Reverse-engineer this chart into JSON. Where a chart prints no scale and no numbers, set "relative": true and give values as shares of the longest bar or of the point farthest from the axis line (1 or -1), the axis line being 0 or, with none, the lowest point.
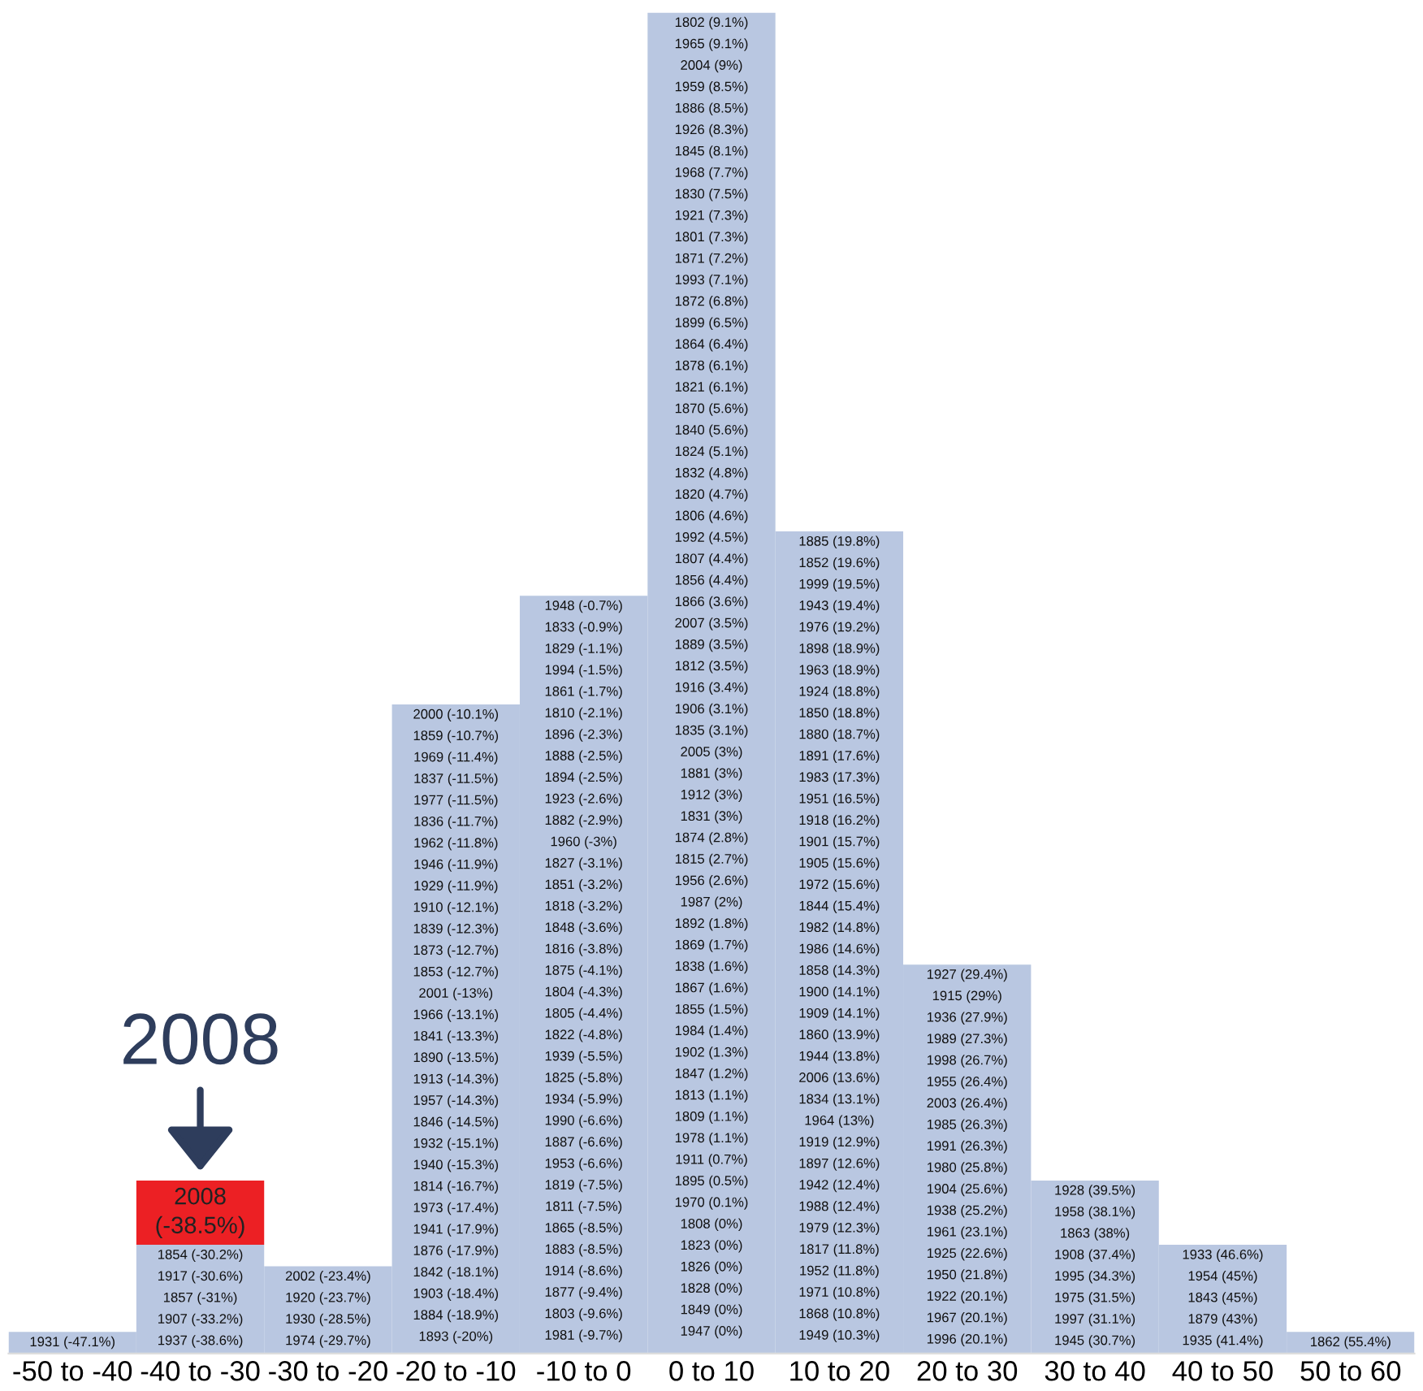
{
  "chart_data": {
    "type": "bar",
    "relative": true,
    "stacked": true,
    "categories": [
      "-50 to -40",
      "-40 to -30",
      "-30 to -20",
      "-20 to -10",
      "-10 to 0",
      "0 to 10",
      "10 to 20",
      "20 to 30",
      "30 to 40",
      "40 to 50",
      "50 to 60"
    ],
    "series": [
      {
        "color": "#b9c7e1",
        "values": [
          0.016,
          0.081,
          0.065,
          0.484,
          0.565,
          1,
          0.613,
          0.29,
          0.129,
          0.081,
          0.016
        ]
      },
      {
        "color": "#ec2024",
        "values": [
          null,
          0.048,
          null,
          null,
          null,
          null,
          null,
          null,
          null,
          null,
          null
        ]
      }
    ],
    "annotations": [
      "2008",
      "2008\n(-38.5%)",
      "1931 (-47.1%)",
      "1854 (-30.2%)",
      "1917 (-30.6%)",
      "1857 (-31%)",
      "1907 (-33.2%)",
      "1937 (-38.6%)",
      "2002 (-23.4%)",
      "1920 (-23.7%)",
      "1930 (-28.5%)",
      "1974 (-29.7%)",
      "2000 (-10.1%)",
      "1859 (-10.7%)",
      "1969 (-11.4%)",
      "1837 (-11.5%)",
      "1977 (-11.5%)",
      "1836 (-11.7%)",
      "1962 (-11.8%)",
      "1946 (-11.9%)",
      "1929 (-11.9%)",
      "1910 (-12.1%)",
      "1839 (-12.3%)",
      "1873 (-12.7%)",
      "1853 (-12.7%)",
      "2001 (-13%)",
      "1966 (-13.1%)",
      "1841 (-13.3%)",
      "1890 (-13.5%)",
      "1913 (-14.3%)",
      "1957 (-14.3%)",
      "1846 (-14.5%)",
      "1932 (-15.1%)",
      "1940 (-15.3%)",
      "1814 (-16.7%)",
      "1973 (-17.4%)",
      "1941 (-17.9%)",
      "1876 (-17.9%)",
      "1842 (-18.1%)",
      "1903 (-18.4%)",
      "1884 (-18.9%)",
      "1893 (-20%)",
      "1948 (-0.7%)",
      "1833 (-0.9%)",
      "1829 (-1.1%)",
      "1994 (-1.5%)",
      "1861 (-1.7%)",
      "1810 (-2.1%)",
      "1896 (-2.3%)",
      "1888 (-2.5%)",
      "1894 (-2.5%)",
      "1923 (-2.6%)",
      "1882 (-2.9%)",
      "1960 (-3%)",
      "1827 (-3.1%)",
      "1851 (-3.2%)",
      "1818 (-3.2%)",
      "1848 (-3.6%)",
      "1816 (-3.8%)",
      "1875 (-4.1%)",
      "1804 (-4.3%)",
      "1805 (-4.4%)",
      "1822 (-4.8%)",
      "1939 (-5.5%)",
      "1825 (-5.8%)",
      "1934 (-5.9%)",
      "1990 (-6.6%)",
      "1887 (-6.6%)",
      "1953 (-6.6%)",
      "1819 (-7.5%)",
      "1811 (-7.5%)",
      "1865 (-8.5%)",
      "1883 (-8.5%)",
      "1914 (-8.6%)",
      "1877 (-9.4%)",
      "1803 (-9.6%)",
      "1981 (-9.7%)",
      "1802 (9.1%)",
      "1965 (9.1%)",
      "2004 (9%)",
      "1959 (8.5%)",
      "1886 (8.5%)",
      "1926 (8.3%)",
      "1845 (8.1%)",
      "1968 (7.7%)",
      "1830 (7.5%)",
      "1921 (7.3%)",
      "1801 (7.3%)",
      "1871 (7.2%)",
      "1993 (7.1%)",
      "1872 (6.8%)",
      "1899 (6.5%)",
      "1864 (6.4%)",
      "1878 (6.1%)",
      "1821 (6.1%)",
      "1870 (5.6%)",
      "1840 (5.6%)",
      "1824 (5.1%)",
      "1832 (4.8%)",
      "1820 (4.7%)",
      "1806 (4.6%)",
      "1992 (4.5%)",
      "1807 (4.4%)",
      "1856 (4.4%)",
      "1866 (3.6%)",
      "2007 (3.5%)",
      "1889 (3.5%)",
      "1812 (3.5%)",
      "1916 (3.4%)",
      "1906 (3.1%)",
      "1835 (3.1%)",
      "2005 (3%)",
      "1881 (3%)",
      "1912 (3%)",
      "1831 (3%)",
      "1874 (2.8%)",
      "1815 (2.7%)",
      "1956 (2.6%)",
      "1987 (2%)",
      "1892 (1.8%)",
      "1869 (1.7%)",
      "1838 (1.6%)",
      "1867 (1.6%)",
      "1855 (1.5%)",
      "1984 (1.4%)",
      "1902 (1.3%)",
      "1847 (1.2%)",
      "1813 (1.1%)",
      "1809 (1.1%)",
      "1978 (1.1%)",
      "1911 (0.7%)",
      "1895 (0.5%)",
      "1970 (0.1%)",
      "1808 (0%)",
      "1823 (0%)",
      "1826 (0%)",
      "1828 (0%)",
      "1849 (0%)",
      "1947 (0%)",
      "1885 (19.8%)",
      "1852 (19.6%)",
      "1999 (19.5%)",
      "1943 (19.4%)",
      "1976 (19.2%)",
      "1898 (18.9%)",
      "1963 (18.9%)",
      "1924 (18.8%)",
      "1850 (18.8%)",
      "1880 (18.7%)",
      "1891 (17.6%)",
      "1983 (17.3%)",
      "1951 (16.5%)",
      "1918 (16.2%)",
      "1901 (15.7%)",
      "1905 (15.6%)",
      "1972 (15.6%)",
      "1844 (15.4%)",
      "1982 (14.8%)",
      "1986 (14.6%)",
      "1858 (14.3%)",
      "1900 (14.1%)",
      "1909 (14.1%)",
      "1860 (13.9%)",
      "1944 (13.8%)",
      "2006 (13.6%)",
      "1834 (13.1%)",
      "1964 (13%)",
      "1919 (12.9%)",
      "1897 (12.6%)",
      "1942 (12.4%)",
      "1988 (12.4%)",
      "1979 (12.3%)",
      "1817 (11.8%)",
      "1952 (11.8%)",
      "1971 (10.8%)",
      "1868 (10.8%)",
      "1949 (10.3%)",
      "1927 (29.4%)",
      "1915 (29%)",
      "1936 (27.9%)",
      "1989 (27.3%)",
      "1998 (26.7%)",
      "1955 (26.4%)",
      "2003 (26.4%)",
      "1985 (26.3%)",
      "1991 (26.3%)",
      "1980 (25.8%)",
      "1904 (25.6%)",
      "1938 (25.2%)",
      "1961 (23.1%)",
      "1925 (22.6%)",
      "1950 (21.8%)",
      "1922 (20.1%)",
      "1967 (20.1%)",
      "1996 (20.1%)",
      "1928 (39.5%)",
      "1958 (38.1%)",
      "1863 (38%)",
      "1908 (37.4%)",
      "1995 (34.3%)",
      "1975 (31.5%)",
      "1997 (31.1%)",
      "1945 (30.7%)",
      "1933 (46.6%)",
      "1954 (45%)",
      "1843 (45%)",
      "1879 (43%)",
      "1935 (41.4%)",
      "1862 (55.4%)"
    ]
  }
}
